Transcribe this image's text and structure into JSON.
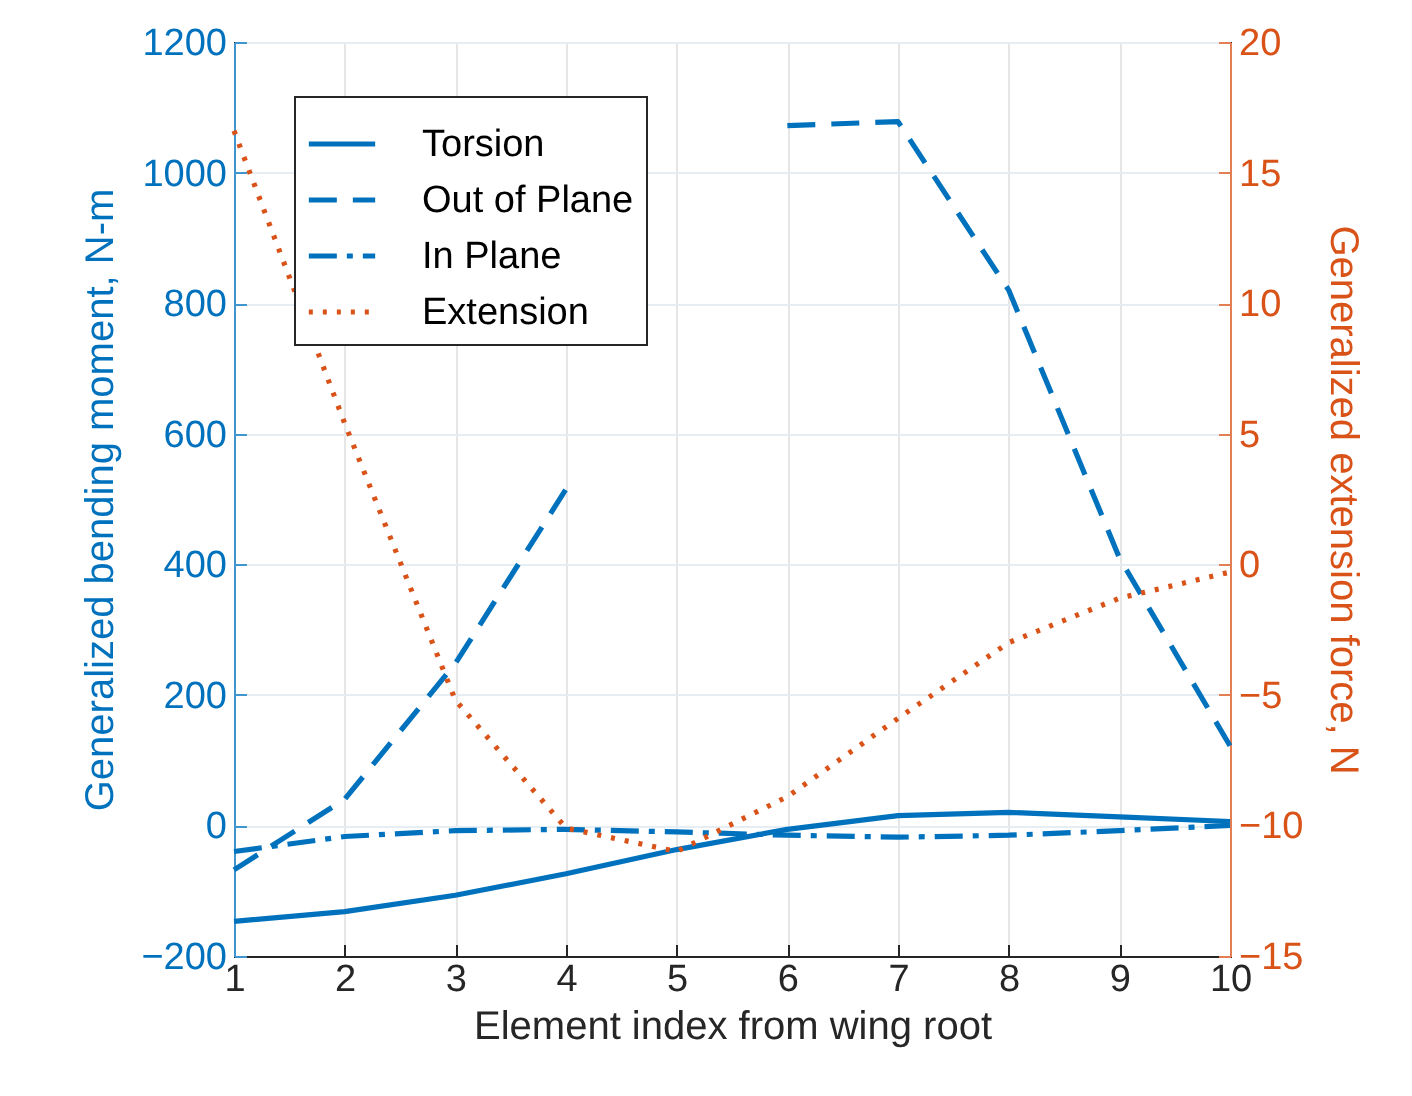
{
  "chart_data": {
    "type": "line",
    "xlabel": "Element index from wing root",
    "ylabel": "Generalized bending moment, N-m",
    "y2label": "Generalized extension force, N",
    "x": [
      1,
      2,
      3,
      4,
      5,
      6,
      7,
      8,
      9,
      10
    ],
    "series": [
      {
        "name": "Torsion",
        "color": "#0072bd",
        "line_style": "solid",
        "values": [
          -147,
          -132,
          -107,
          -74,
          -37,
          -6,
          15,
          20,
          13,
          6
        ]
      },
      {
        "name": "Out of Plane",
        "color": "#0072bd",
        "line_style": "dashed",
        "values": [
          -68,
          40,
          248,
          515,
          null,
          1072,
          1078,
          820,
          410,
          122
        ]
      },
      {
        "name": "In Plane",
        "color": "#0072bd",
        "line_style": "dashdot",
        "values": [
          -40,
          -17,
          -8,
          -6,
          -10,
          -15,
          -18,
          -15,
          -8,
          0
        ]
      },
      {
        "name": "Extension",
        "color": "#d95319",
        "line_style": "dotted",
        "axis": "y2",
        "values": [
          16.6,
          5.4,
          -5.2,
          -10.1,
          -11.0,
          -8.9,
          -5.9,
          -3.0,
          -1.3,
          -0.3
        ]
      }
    ],
    "xlim": [
      1,
      10
    ],
    "xticks": [
      1,
      2,
      3,
      4,
      5,
      6,
      7,
      8,
      9,
      10
    ],
    "ylim": [
      -200,
      1200
    ],
    "yticks": [
      -200,
      0,
      200,
      400,
      600,
      800,
      1000,
      1200
    ],
    "y2lim": [
      -15,
      20
    ],
    "y2ticks": [
      -15,
      -10,
      -5,
      0,
      5,
      10,
      15,
      20
    ],
    "grid": true,
    "legend": "top left"
  }
}
